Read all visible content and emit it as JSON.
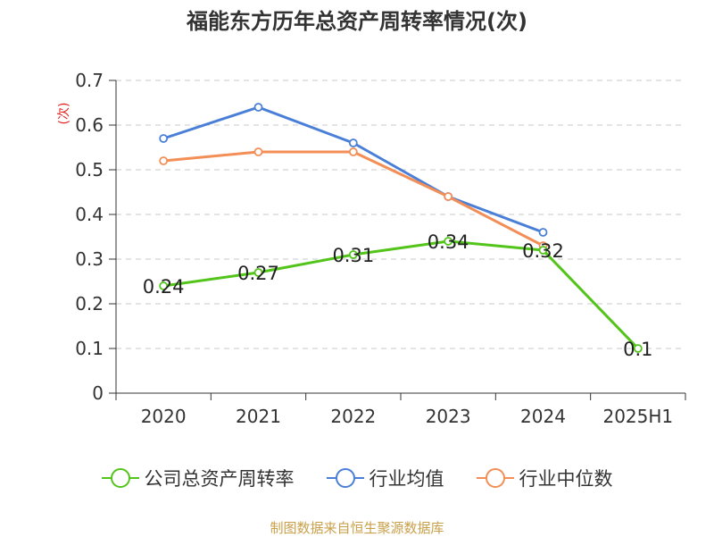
{
  "chart_data": {
    "type": "line",
    "title": "福能东方历年总资产周转率情况(次)",
    "ylabel": "(次)",
    "xlabel": "",
    "categories": [
      "2020",
      "2021",
      "2022",
      "2023",
      "2024",
      "2025H1"
    ],
    "ylim": [
      0,
      0.7
    ],
    "yticks": [
      "0",
      "0.1",
      "0.2",
      "0.3",
      "0.4",
      "0.5",
      "0.6",
      "0.7"
    ],
    "grid": true,
    "legend_position": "bottom",
    "series": [
      {
        "name": "公司总资产周转率",
        "color": "#52c41a",
        "values": [
          0.24,
          0.27,
          0.31,
          0.34,
          0.32,
          0.1
        ],
        "labels": [
          "0.24",
          "0.27",
          "0.31",
          "0.34",
          "0.32",
          "0.1"
        ]
      },
      {
        "name": "行业均值",
        "color": "#4a7fd8",
        "values": [
          0.57,
          0.64,
          0.56,
          0.44,
          0.36,
          null
        ]
      },
      {
        "name": "行业中位数",
        "color": "#f28e56",
        "values": [
          0.52,
          0.54,
          0.54,
          0.44,
          0.33,
          null
        ]
      }
    ]
  },
  "source_note": "制图数据来自恒生聚源数据库"
}
